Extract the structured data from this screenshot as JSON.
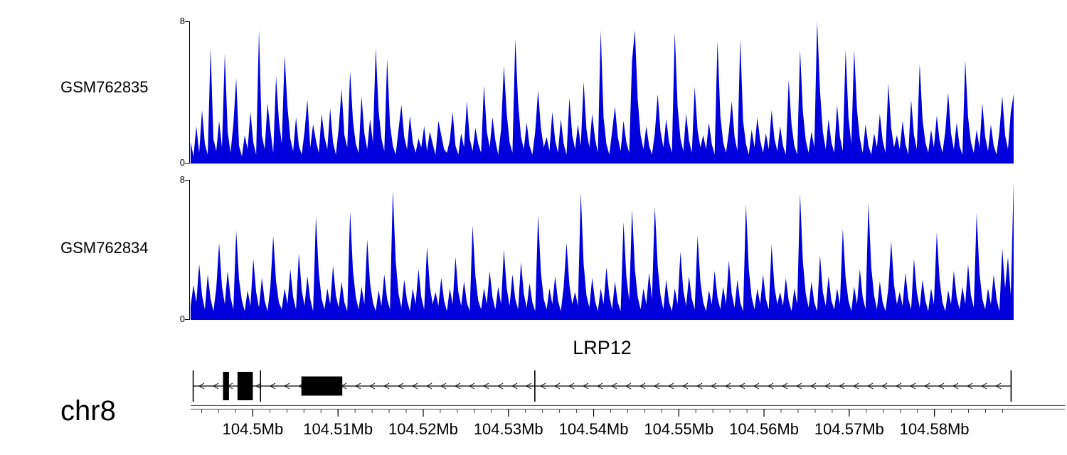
{
  "chart_data": {
    "type": "area",
    "colors": {
      "signal": "#0000dd",
      "exon": "#000000",
      "ruler": "#444444"
    },
    "tracks": [
      {
        "label": "GSM762835",
        "ymax": 8,
        "ymin": 0,
        "values": [
          1.2,
          0.4,
          2.1,
          0.6,
          3.0,
          1.1,
          0.5,
          6.5,
          1.4,
          0.7,
          2.4,
          0.9,
          6.2,
          1.8,
          0.6,
          2.2,
          4.8,
          1.0,
          0.4,
          1.6,
          0.8,
          2.9,
          1.2,
          0.5,
          7.5,
          1.6,
          0.8,
          3.4,
          1.9,
          0.6,
          4.9,
          2.4,
          1.1,
          6.1,
          3.2,
          1.4,
          0.7,
          2.6,
          1.0,
          0.5,
          1.8,
          3.6,
          0.9,
          2.2,
          1.3,
          0.6,
          2.8,
          1.5,
          0.8,
          3.1,
          1.2,
          0.5,
          2.0,
          4.2,
          1.6,
          0.9,
          5.2,
          2.4,
          1.1,
          0.6,
          3.8,
          1.7,
          0.8,
          2.5,
          1.2,
          6.5,
          3.0,
          1.4,
          0.7,
          5.9,
          2.2,
          1.0,
          0.5,
          1.9,
          3.3,
          1.5,
          0.8,
          2.7,
          1.2,
          0.6,
          1.4,
          0.9,
          2.1,
          0.7,
          1.8,
          1.1,
          0.5,
          2.4,
          1.6,
          0.8,
          0.6,
          1.3,
          2.9,
          1.0,
          0.5,
          1.7,
          0.9,
          3.5,
          1.4,
          0.7,
          2.0,
          1.1,
          0.6,
          4.4,
          1.8,
          0.9,
          2.6,
          1.3,
          0.5,
          1.9,
          5.5,
          2.8,
          1.2,
          0.6,
          7.0,
          3.4,
          1.5,
          0.8,
          2.3,
          1.0,
          0.5,
          1.8,
          4.1,
          2.0,
          0.9,
          1.5,
          0.7,
          2.9,
          1.3,
          0.6,
          2.5,
          1.1,
          0.5,
          3.7,
          1.6,
          0.8,
          2.2,
          1.0,
          4.6,
          1.9,
          0.9,
          2.8,
          1.4,
          0.6,
          7.5,
          2.6,
          1.1,
          0.5,
          1.8,
          3.2,
          1.5,
          0.7,
          2.4,
          1.2,
          0.6,
          5.8,
          7.5,
          3.6,
          1.6,
          0.8,
          2.1,
          1.0,
          0.5,
          1.7,
          3.9,
          1.8,
          0.9,
          2.5,
          1.2,
          0.6,
          7.4,
          3.2,
          1.4,
          0.7,
          2.8,
          1.3,
          0.6,
          4.3,
          1.9,
          0.9,
          1.6,
          0.8,
          2.3,
          1.1,
          0.5,
          6.9,
          2.7,
          1.2,
          0.6,
          1.8,
          3.5,
          1.5,
          0.7,
          7.0,
          2.4,
          1.1,
          0.5,
          1.9,
          0.9,
          2.6,
          1.3,
          0.6,
          1.7,
          0.8,
          3.0,
          1.4,
          0.7,
          2.1,
          1.0,
          0.5,
          4.7,
          2.2,
          1.0,
          0.5,
          6.4,
          2.9,
          1.3,
          0.6,
          1.8,
          0.9,
          8.0,
          4.1,
          1.8,
          0.8,
          2.5,
          1.2,
          0.6,
          3.3,
          1.5,
          0.7,
          6.4,
          2.6,
          1.1,
          6.4,
          3.0,
          1.4,
          0.6,
          2.2,
          1.0,
          0.5,
          1.7,
          0.9,
          2.8,
          1.3,
          0.6,
          4.5,
          2.0,
          0.9,
          1.6,
          0.8,
          2.4,
          1.1,
          0.5,
          3.6,
          1.6,
          0.8,
          5.6,
          2.5,
          1.2,
          0.6,
          1.9,
          0.9,
          2.7,
          1.3,
          0.6,
          1.8,
          4.0,
          1.7,
          0.8,
          2.3,
          1.0,
          0.5,
          5.8,
          2.6,
          1.2,
          0.6,
          1.9,
          0.9,
          3.4,
          1.5,
          0.7,
          2.2,
          1.0,
          0.5,
          1.8,
          3.8,
          1.6,
          0.8,
          2.9,
          3.9
        ]
      },
      {
        "label": "GSM762834",
        "ymax": 8,
        "ymin": 0,
        "values": [
          0.8,
          2.0,
          1.0,
          3.2,
          1.4,
          0.6,
          2.6,
          1.2,
          0.5,
          1.8,
          4.4,
          1.9,
          0.9,
          2.8,
          1.3,
          0.6,
          5.1,
          2.3,
          1.1,
          0.5,
          1.7,
          0.8,
          3.5,
          1.6,
          0.7,
          2.4,
          1.1,
          0.5,
          1.9,
          4.8,
          2.2,
          1.0,
          0.6,
          1.8,
          0.9,
          2.9,
          1.3,
          0.6,
          3.8,
          1.7,
          0.8,
          2.5,
          1.2,
          0.5,
          5.9,
          2.7,
          1.2,
          0.6,
          1.8,
          0.9,
          3.1,
          1.4,
          0.7,
          2.2,
          1.0,
          0.5,
          6.2,
          2.8,
          1.3,
          0.6,
          1.9,
          0.9,
          4.6,
          2.1,
          1.0,
          0.5,
          1.7,
          0.8,
          2.6,
          1.2,
          0.6,
          7.4,
          3.4,
          1.5,
          0.7,
          2.3,
          1.1,
          0.5,
          1.8,
          0.9,
          2.9,
          1.3,
          0.6,
          4.2,
          1.9,
          0.9,
          1.6,
          0.8,
          2.4,
          1.1,
          0.5,
          1.8,
          0.9,
          3.6,
          1.6,
          0.8,
          2.2,
          1.0,
          0.5,
          5.4,
          2.5,
          1.1,
          0.6,
          1.8,
          0.9,
          2.8,
          1.3,
          0.6,
          1.9,
          0.9,
          4.0,
          1.8,
          0.8,
          2.6,
          1.2,
          0.6,
          3.3,
          1.5,
          0.7,
          2.1,
          1.0,
          0.5,
          6.0,
          2.7,
          1.2,
          0.6,
          1.8,
          0.9,
          2.5,
          1.1,
          0.5,
          1.9,
          4.4,
          2.0,
          0.9,
          1.6,
          0.8,
          7.3,
          3.2,
          1.4,
          0.7,
          2.4,
          1.1,
          0.5,
          1.8,
          0.9,
          3.0,
          1.4,
          0.6,
          2.2,
          1.0,
          0.5,
          5.6,
          2.5,
          1.1,
          6.3,
          2.9,
          1.3,
          0.6,
          1.8,
          0.9,
          2.7,
          1.2,
          6.5,
          3.1,
          1.4,
          0.6,
          2.3,
          1.0,
          0.5,
          1.8,
          0.9,
          3.9,
          1.7,
          0.8,
          2.5,
          1.2,
          0.6,
          4.8,
          2.2,
          1.0,
          0.5,
          1.7,
          0.9,
          2.8,
          1.3,
          0.6,
          1.9,
          0.9,
          3.4,
          1.5,
          0.7,
          2.3,
          1.0,
          0.5,
          6.6,
          2.9,
          1.3,
          0.6,
          1.8,
          0.9,
          2.6,
          1.2,
          0.6,
          4.3,
          1.9,
          0.9,
          1.6,
          0.8,
          2.4,
          1.1,
          0.5,
          1.8,
          0.9,
          7.2,
          3.3,
          1.5,
          0.7,
          2.2,
          1.0,
          0.5,
          3.7,
          1.6,
          0.8,
          2.5,
          1.1,
          0.6,
          1.8,
          0.9,
          5.2,
          2.4,
          1.1,
          0.5,
          1.9,
          0.9,
          2.9,
          1.3,
          0.6,
          6.7,
          3.0,
          1.4,
          0.6,
          2.2,
          1.0,
          0.5,
          1.8,
          4.5,
          2.0,
          0.9,
          1.6,
          0.8,
          2.7,
          1.2,
          0.6,
          3.5,
          1.6,
          0.7,
          2.3,
          1.1,
          0.5,
          1.8,
          0.9,
          5.0,
          2.3,
          1.0,
          0.5,
          1.7,
          0.9,
          2.8,
          1.3,
          0.6,
          1.9,
          0.9,
          3.2,
          1.4,
          0.7,
          6.1,
          2.7,
          1.2,
          0.6,
          1.8,
          0.9,
          2.6,
          1.2,
          0.5,
          4.1,
          1.8,
          3.6,
          1.4,
          7.9
        ]
      }
    ],
    "gene": {
      "name": "LRP12",
      "chrom": "chr8",
      "strand": "-",
      "span_mb": [
        104.493,
        104.589
      ],
      "exons_mb": [
        {
          "start": 104.4965,
          "end": 104.4972,
          "type": "tall"
        },
        {
          "start": 104.4982,
          "end": 104.5,
          "type": "tall"
        },
        {
          "start": 104.5008,
          "end": 104.501,
          "type": "line"
        },
        {
          "start": 104.5057,
          "end": 104.5105,
          "type": "big"
        },
        {
          "start": 104.533,
          "end": 104.5332,
          "type": "line"
        }
      ]
    },
    "axis": {
      "min_mb": 104.4927,
      "max_mb": 104.5893,
      "minor_start": 104.494,
      "minor_step": 0.002,
      "ticks": [
        {
          "value": 104.5,
          "label": "104.5Mb"
        },
        {
          "value": 104.51,
          "label": "104.51Mb"
        },
        {
          "value": 104.52,
          "label": "104.52Mb"
        },
        {
          "value": 104.53,
          "label": "104.53Mb"
        },
        {
          "value": 104.54,
          "label": "104.54Mb"
        },
        {
          "value": 104.55,
          "label": "104.55Mb"
        },
        {
          "value": 104.56,
          "label": "104.56Mb"
        },
        {
          "value": 104.57,
          "label": "104.57Mb"
        },
        {
          "value": 104.58,
          "label": "104.58Mb"
        }
      ]
    }
  }
}
